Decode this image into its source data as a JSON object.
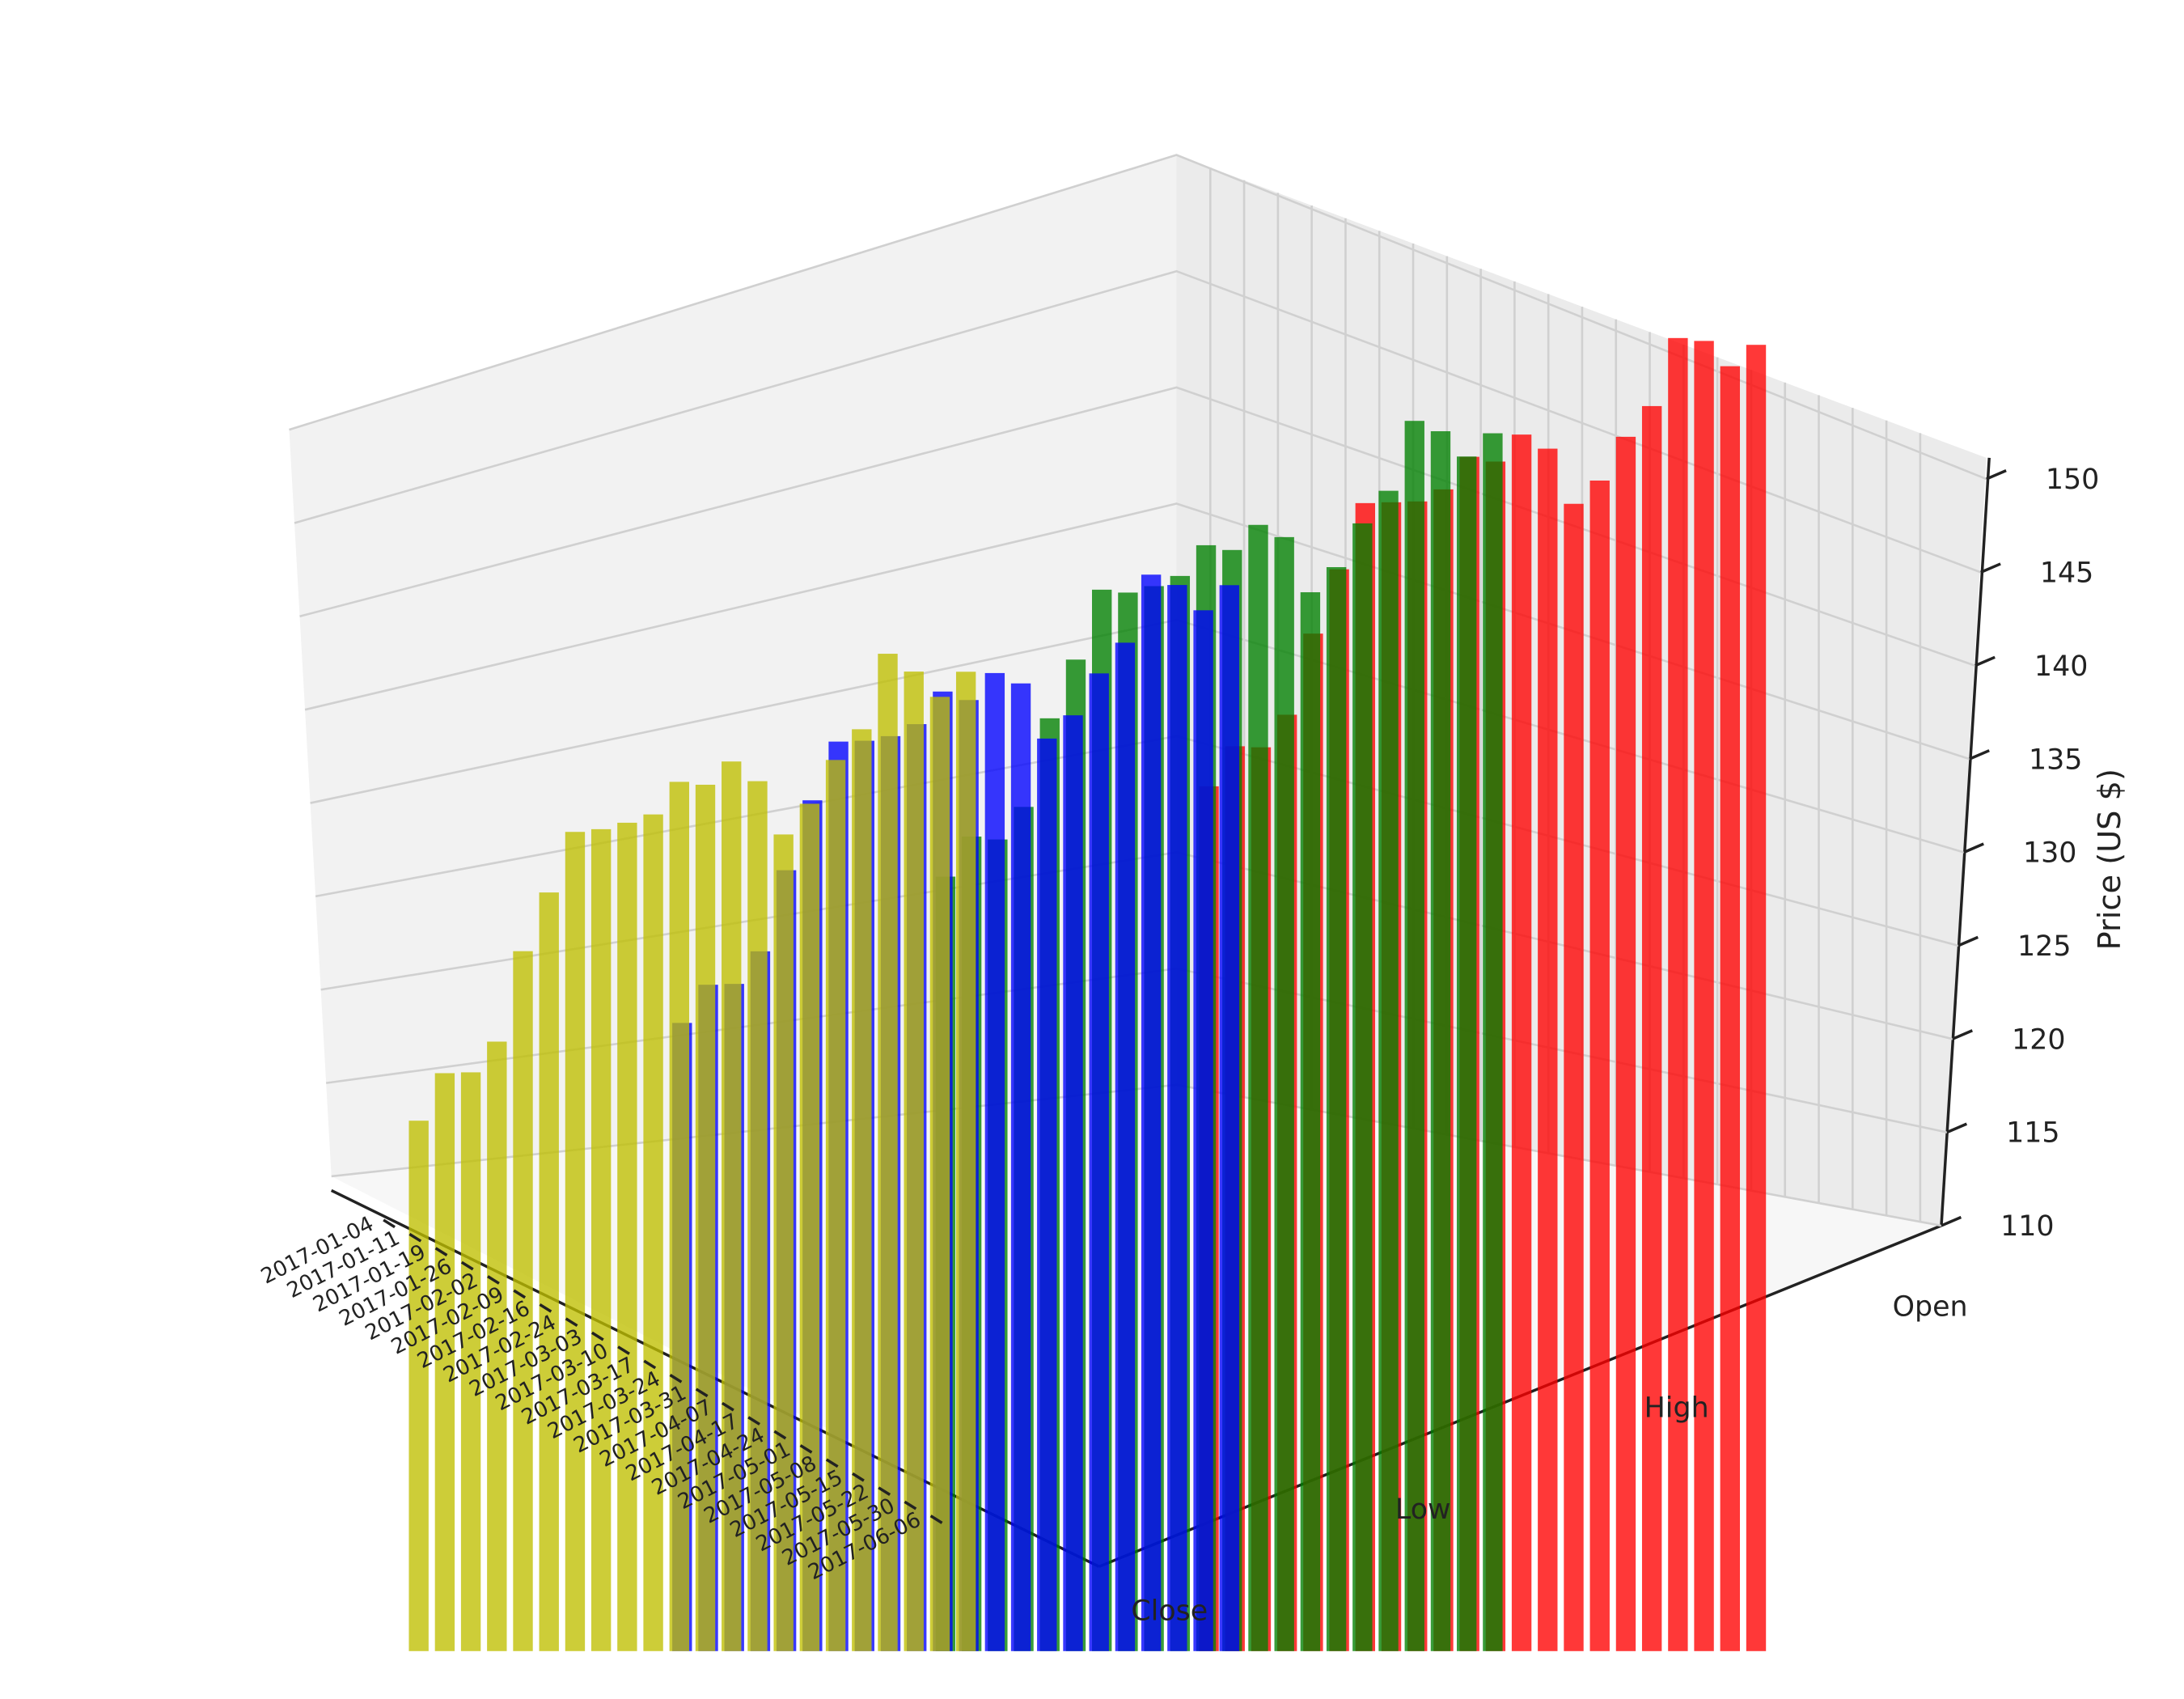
{
  "chart_data": {
    "type": "bar3d",
    "zlabel": "Price (US $)",
    "categories": [
      "2017-01-04",
      "2017-01-11",
      "2017-01-19",
      "2017-01-26",
      "2017-02-02",
      "2017-02-09",
      "2017-02-16",
      "2017-02-24",
      "2017-03-03",
      "2017-03-10",
      "2017-03-17",
      "2017-03-24",
      "2017-03-31",
      "2017-04-07",
      "2017-04-17",
      "2017-04-24",
      "2017-05-01",
      "2017-05-08",
      "2017-05-15",
      "2017-05-22",
      "2017-05-30",
      "2017-06-06"
    ],
    "series": [
      {
        "name": "Open",
        "color": "#ff0000",
        "values": [
          115.8,
          118.7,
          119.4,
          121.9,
          127.0,
          131.2,
          135.5,
          136.3,
          137.1,
          138.5,
          141.0,
          141.5,
          143.7,
          143.7,
          141.5,
          143.5,
          146.6,
          149.0,
          153.4,
          154.0,
          153.4,
          155.3
        ]
      },
      {
        "name": "High",
        "color": "#008000",
        "values": [
          117.0,
          119.9,
          120.5,
          123.0,
          128.5,
          132.4,
          136.9,
          137.5,
          138.6,
          139.9,
          142.3,
          142.8,
          144.9,
          145.0,
          142.8,
          144.9,
          148.0,
          150.5,
          155.0,
          155.2,
          154.6,
          156.6
        ]
      },
      {
        "name": "Low",
        "color": "#0000ff",
        "values": [
          115.2,
          118.0,
          118.8,
          121.3,
          126.4,
          130.9,
          134.8,
          135.6,
          136.6,
          138.0,
          140.5,
          140.8,
          143.0,
          143.2,
          141.0,
          143.0,
          146.0,
          148.4,
          152.8,
          153.0,
          152.4,
          154.5
        ]
      },
      {
        "name": "Close",
        "color": "#bfbf00",
        "values": [
          116.0,
          119.3,
          120.1,
          122.5,
          128.1,
          132.0,
          136.0,
          136.9,
          138.0,
          139.2,
          141.7,
          142.3,
          144.3,
          144.0,
          141.9,
          144.3,
          147.4,
          149.8,
          154.6,
          154.4,
          153.8,
          155.9
        ]
      }
    ],
    "zlim": [
      110,
      150
    ],
    "zticks": [
      110,
      115,
      120,
      125,
      130,
      135,
      140,
      145,
      150
    ],
    "grid": true
  }
}
